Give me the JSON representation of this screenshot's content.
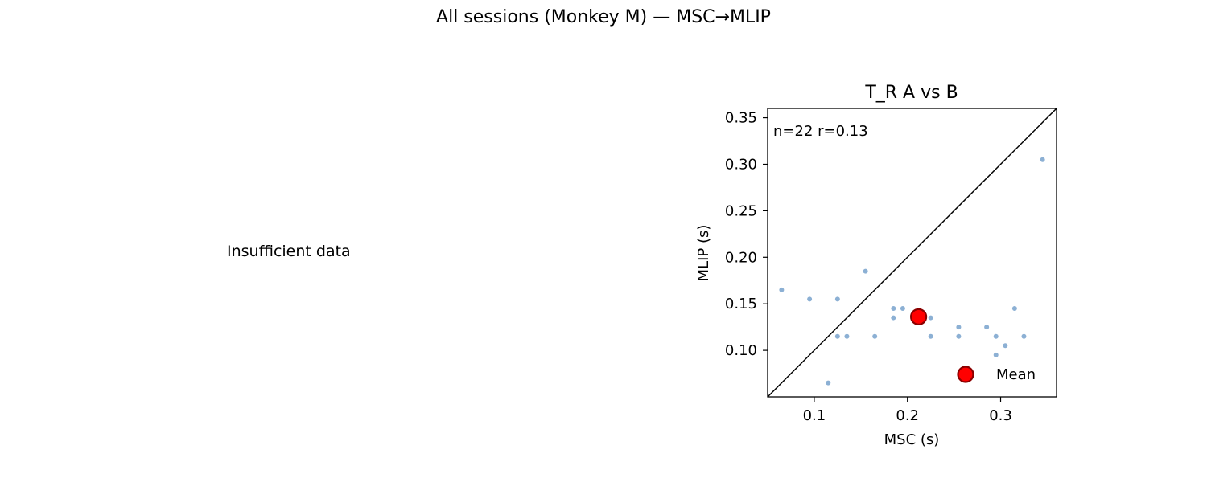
{
  "figure": {
    "suptitle": "All sessions (Monkey M) — MSC→MLIP",
    "left_panel_message": "Insufficient data"
  },
  "chart_data": {
    "type": "scatter",
    "title": "T_R  A vs B",
    "xlabel": "MSC (s)",
    "ylabel": "MLIP (s)",
    "xlim": [
      0.05,
      0.36
    ],
    "ylim": [
      0.05,
      0.36
    ],
    "xticks": [
      0.1,
      0.2,
      0.3
    ],
    "xtick_labels": [
      "0.1",
      "0.2",
      "0.3"
    ],
    "yticks": [
      0.1,
      0.15,
      0.2,
      0.25,
      0.3,
      0.35
    ],
    "ytick_labels": [
      "0.10",
      "0.15",
      "0.20",
      "0.25",
      "0.30",
      "0.35"
    ],
    "grid": false,
    "annotation": "n=22  r=0.13",
    "identity_line": true,
    "points": {
      "color": "#8cb0d4",
      "x": [
        0.065,
        0.095,
        0.115,
        0.125,
        0.125,
        0.135,
        0.155,
        0.165,
        0.185,
        0.185,
        0.195,
        0.225,
        0.225,
        0.255,
        0.255,
        0.285,
        0.295,
        0.295,
        0.305,
        0.315,
        0.325,
        0.345
      ],
      "y": [
        0.165,
        0.155,
        0.065,
        0.155,
        0.115,
        0.115,
        0.185,
        0.115,
        0.145,
        0.135,
        0.145,
        0.135,
        0.115,
        0.125,
        0.115,
        0.125,
        0.115,
        0.095,
        0.105,
        0.145,
        0.115,
        0.305
      ]
    },
    "mean": {
      "x": 0.212,
      "y": 0.136,
      "color": "#ff0000",
      "edge_color": "#8b0000"
    },
    "legend": {
      "placement": "lower-right",
      "entries": [
        "Mean"
      ]
    }
  }
}
